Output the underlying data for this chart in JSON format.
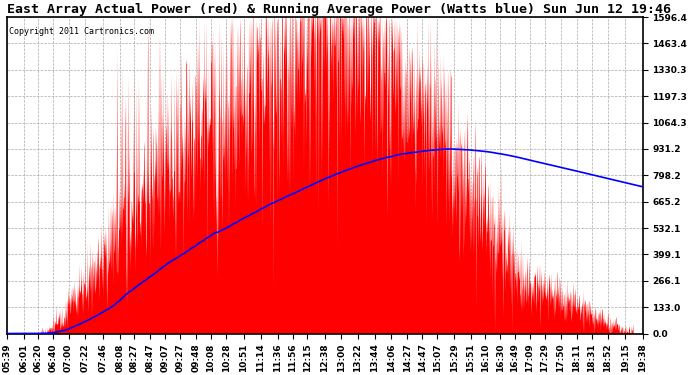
{
  "title": "East Array Actual Power (red) & Running Average Power (Watts blue) Sun Jun 12 19:46",
  "copyright": "Copyright 2011 Cartronics.com",
  "yticks": [
    0.0,
    133.0,
    266.1,
    399.1,
    532.1,
    665.2,
    798.2,
    931.2,
    1064.3,
    1197.3,
    1330.3,
    1463.4,
    1596.4
  ],
  "ymax": 1596.4,
  "ymin": 0.0,
  "bg_color": "#ffffff",
  "plot_bg_color": "#ffffff",
  "grid_color": "#aaaaaa",
  "actual_color": "#ff0000",
  "avg_color": "#0000ff",
  "title_fontsize": 9.5,
  "tick_fontsize": 6.5,
  "xtick_labels": [
    "05:39",
    "06:01",
    "06:20",
    "06:40",
    "07:00",
    "07:22",
    "07:46",
    "08:08",
    "08:27",
    "08:47",
    "09:07",
    "09:27",
    "09:48",
    "10:08",
    "10:28",
    "10:51",
    "11:14",
    "11:36",
    "11:56",
    "12:15",
    "12:38",
    "13:00",
    "13:22",
    "13:44",
    "14:06",
    "14:27",
    "14:47",
    "15:07",
    "15:29",
    "15:51",
    "16:10",
    "16:30",
    "16:49",
    "17:09",
    "17:29",
    "17:50",
    "18:11",
    "18:31",
    "18:52",
    "19:15",
    "19:38"
  ]
}
